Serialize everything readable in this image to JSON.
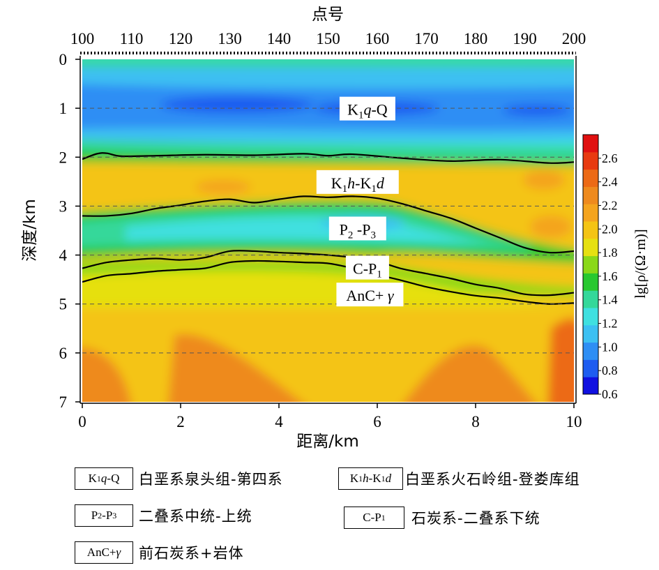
{
  "chart_data": {
    "type": "heatmap",
    "top_axis_title": "点号",
    "top_ticks": [
      "100",
      "110",
      "120",
      "130",
      "140",
      "150",
      "160",
      "170",
      "180",
      "190",
      "200"
    ],
    "xlabel": "距离/km",
    "x_ticks": [
      "0",
      "2",
      "4",
      "6",
      "8",
      "10"
    ],
    "xlim": [
      0,
      10
    ],
    "ylabel": "深度/km",
    "y_ticks": [
      "0",
      "1",
      "2",
      "3",
      "4",
      "5",
      "6",
      "7"
    ],
    "ylim": [
      0,
      7
    ],
    "colorbar": {
      "label": "lg[ρ/(Ω·m)]",
      "range": [
        0.6,
        2.8
      ],
      "ticks": [
        "2.6",
        "2.4",
        "2.2",
        "2.0",
        "1.8",
        "1.6",
        "1.4",
        "1.2",
        "1.0",
        "0.8",
        "0.6"
      ],
      "colors": [
        "#1010e0",
        "#1e5cf0",
        "#2e8ef4",
        "#3cc0f2",
        "#3fe0e0",
        "#34d89a",
        "#28c830",
        "#8ad818",
        "#e6e010",
        "#f4c414",
        "#f4a41e",
        "#ee8a1e",
        "#ec6a16",
        "#e83a10",
        "#e01010"
      ]
    },
    "layer_labels": [
      {
        "main": "K",
        "sub": "1",
        "italic": "q",
        "rest": "-Q",
        "x": 5.8,
        "y": 1.05
      },
      {
        "main": "K",
        "sub": "1",
        "italic": "h",
        "rest": "-K",
        "sub2": "1",
        "italic2": "d",
        "x": 5.6,
        "y": 2.55
      },
      {
        "main": "P",
        "sub": "2",
        "rest": " -P",
        "sub2": "3",
        "x": 5.6,
        "y": 3.5
      },
      {
        "main": "C-P",
        "sub": "1",
        "x": 5.8,
        "y": 4.3
      },
      {
        "main": "AnC+ ",
        "italic": "γ",
        "x": 5.85,
        "y": 4.85
      }
    ],
    "boundaries": [
      {
        "name": "b1",
        "x": [
          0,
          0.3,
          0.5,
          0.8,
          1.5,
          2.5,
          3.5,
          4.5,
          5,
          5.5,
          6.5,
          7.5,
          8.5,
          9.5,
          10
        ],
        "y": [
          2.04,
          1.93,
          1.92,
          1.98,
          1.97,
          1.95,
          1.96,
          1.93,
          1.97,
          1.94,
          2.02,
          2.08,
          2.05,
          2.12,
          2.1
        ]
      },
      {
        "name": "b2",
        "x": [
          0,
          0.5,
          1,
          1.5,
          2,
          2.5,
          3,
          3.5,
          4,
          4.5,
          5,
          5.5,
          6,
          6.5,
          7,
          7.5,
          8,
          8.5,
          9,
          9.5,
          10
        ],
        "y": [
          3.2,
          3.2,
          3.15,
          3.05,
          2.98,
          2.9,
          2.86,
          2.93,
          2.86,
          2.8,
          2.82,
          2.8,
          2.84,
          2.95,
          3.1,
          3.25,
          3.45,
          3.65,
          3.85,
          3.95,
          3.92
        ]
      },
      {
        "name": "b3",
        "x": [
          0,
          0.5,
          1,
          1.5,
          2,
          2.5,
          3,
          3.5,
          4,
          4.5,
          5,
          5.5,
          6,
          6.5,
          7,
          7.5,
          8,
          8.5,
          9,
          9.5,
          10
        ],
        "y": [
          4.27,
          4.15,
          4.1,
          4.07,
          4.1,
          4.05,
          3.92,
          3.92,
          3.95,
          3.97,
          4.0,
          4.05,
          4.13,
          4.28,
          4.38,
          4.48,
          4.6,
          4.68,
          4.8,
          4.82,
          4.77
        ]
      },
      {
        "name": "b4",
        "x": [
          0,
          0.5,
          1,
          1.5,
          2,
          2.5,
          3,
          3.5,
          4,
          4.5,
          5,
          5.5,
          6,
          6.5,
          7,
          7.5,
          8,
          8.5,
          9,
          9.5,
          10
        ],
        "y": [
          4.55,
          4.42,
          4.38,
          4.33,
          4.3,
          4.27,
          4.15,
          4.12,
          4.13,
          4.15,
          4.17,
          4.27,
          4.4,
          4.52,
          4.65,
          4.75,
          4.83,
          4.88,
          4.95,
          5.0,
          4.98
        ]
      }
    ]
  },
  "legend": [
    {
      "code_main": "K",
      "code_sub": "1",
      "code_italic": "q",
      "code_rest": "-Q",
      "desc": "白垩系泉头组-第四系"
    },
    {
      "code_main": "K",
      "code_sub": "1",
      "code_italic": "h",
      "code_rest": "-K",
      "code_sub2": "1",
      "code_italic2": "d",
      "desc": "白垩系火石岭组-登娄库组"
    },
    {
      "code_main": "P",
      "code_sub": "2",
      "code_rest": " -P",
      "code_sub2": "3",
      "desc": "二叠系中统-上统"
    },
    {
      "code_main": "C-P",
      "code_sub": "1",
      "desc": "石炭系-二叠系下统"
    },
    {
      "code_main": "AnC+",
      "code_italic": "γ",
      "desc": "前石炭系+岩体"
    }
  ]
}
